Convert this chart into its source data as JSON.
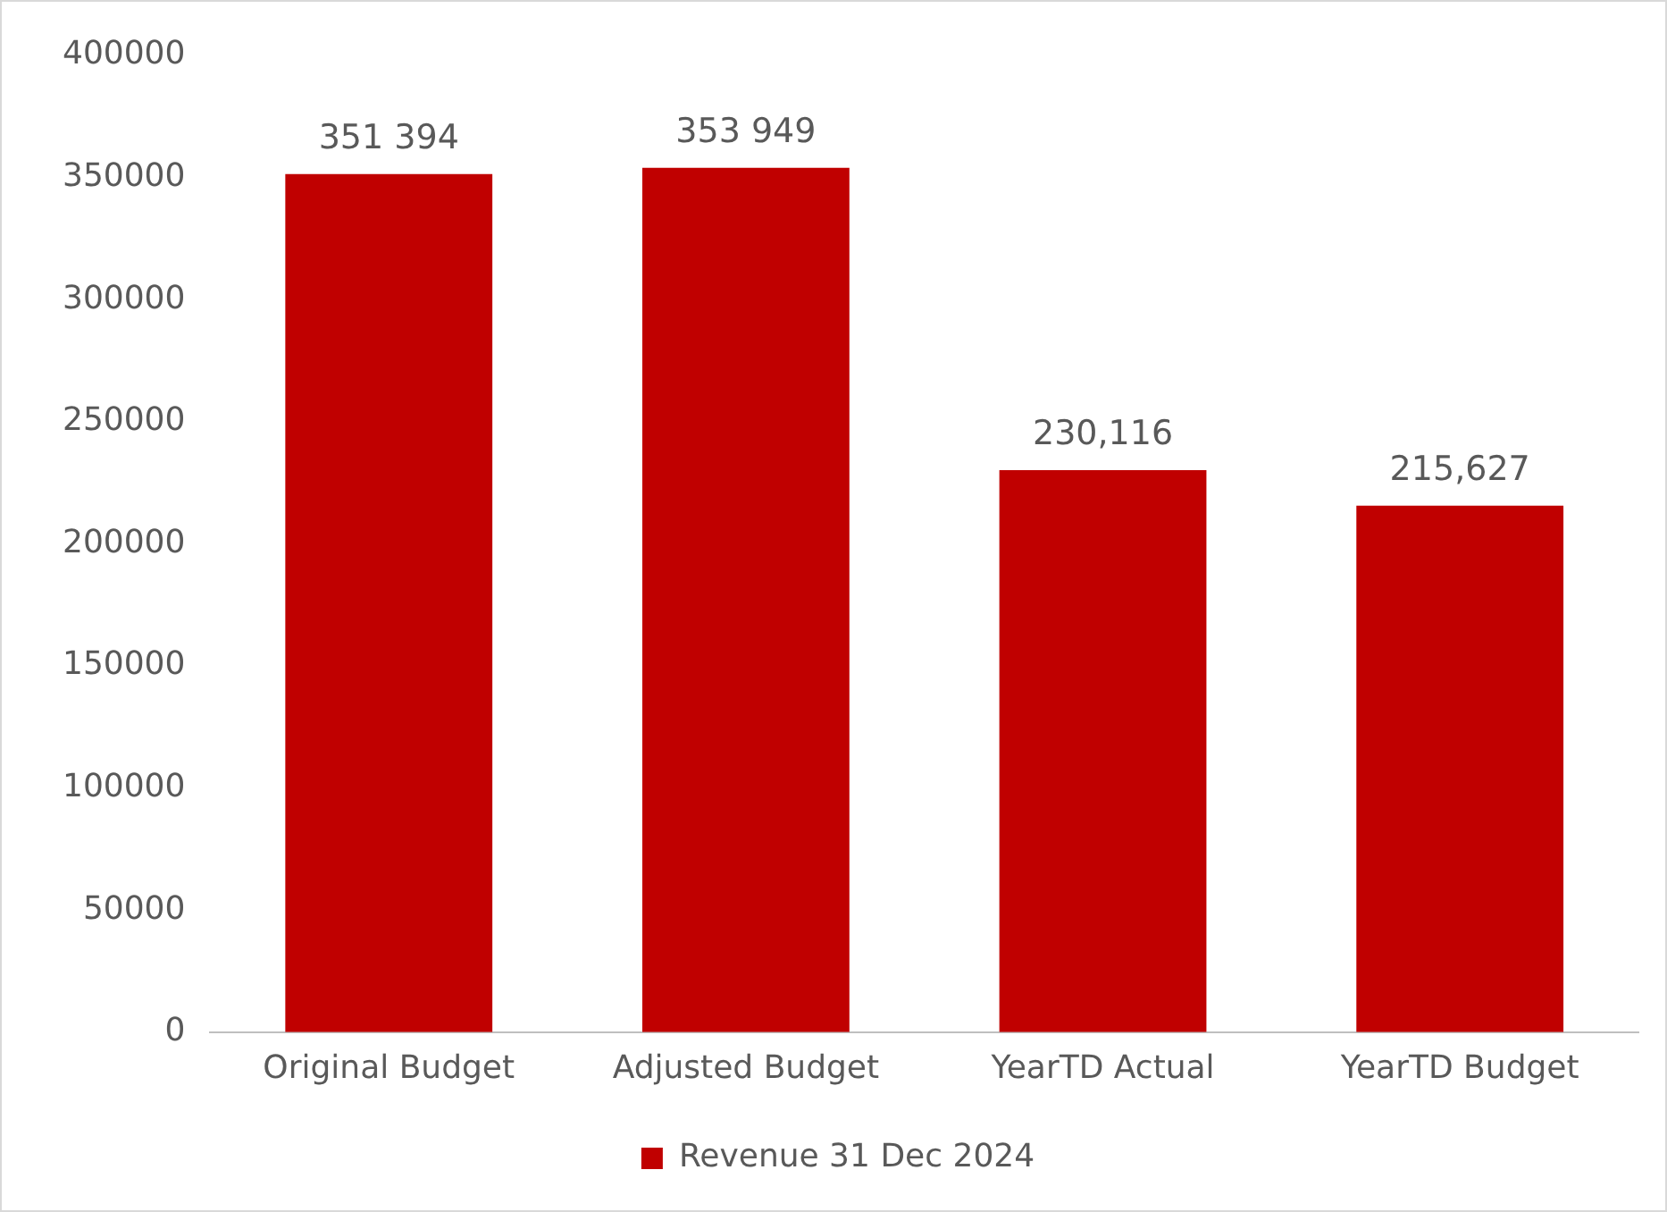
{
  "chart_data": {
    "type": "bar",
    "categories": [
      "Original Budget",
      "Adjusted Budget",
      "YearTD Actual",
      "YearTD Budget"
    ],
    "series": [
      {
        "name": "Revenue 31 Dec 2024",
        "color": "#c00000",
        "values": [
          351394,
          353949,
          230116,
          215627
        ],
        "value_labels": [
          "351 394",
          "353 949",
          "230,116",
          "215,627"
        ]
      }
    ],
    "ylim": [
      0,
      400000
    ],
    "yticks": [
      0,
      50000,
      100000,
      150000,
      200000,
      250000,
      300000,
      350000,
      400000
    ],
    "grid": false,
    "legend": "bottom"
  }
}
